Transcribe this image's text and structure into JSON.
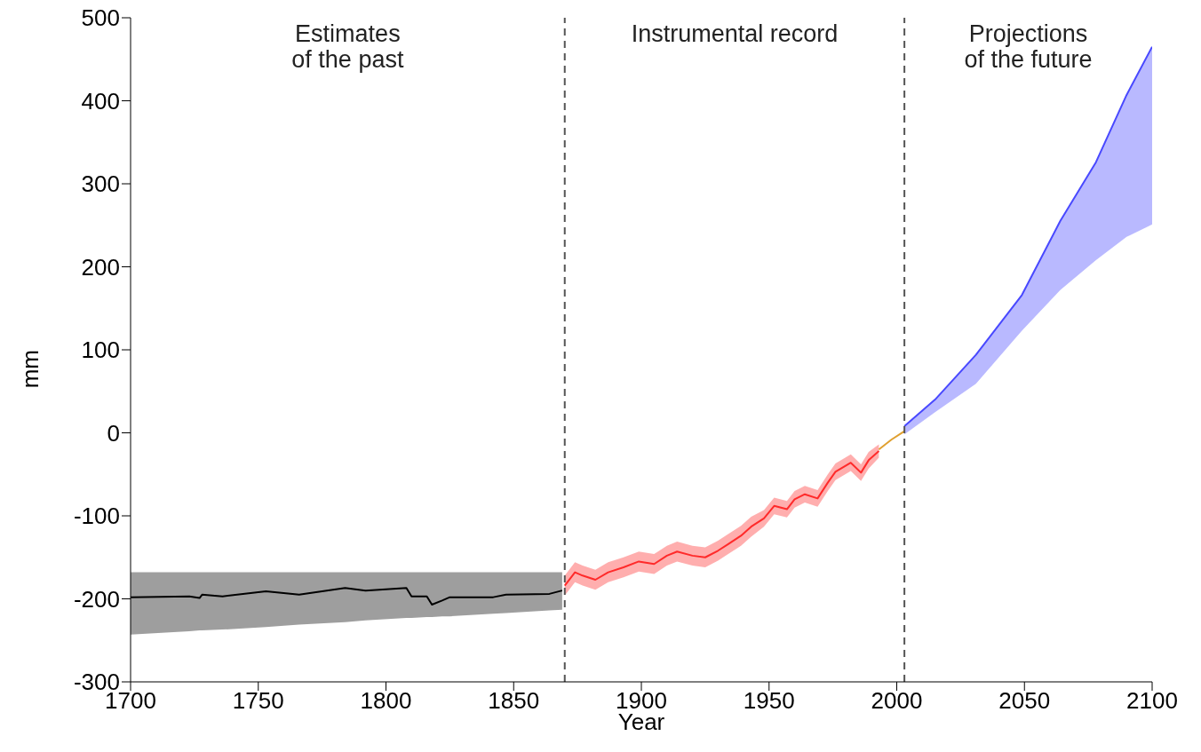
{
  "chart_data": {
    "type": "line",
    "xlabel": "Year",
    "ylabel": "mm",
    "xlim": [
      1700,
      2100
    ],
    "xticks": [
      1700,
      1750,
      1800,
      1850,
      1900,
      1950,
      2000,
      2050,
      2100
    ],
    "ylim": [
      -300,
      500
    ],
    "yticks": [
      -300,
      -200,
      -100,
      0,
      100,
      200,
      300,
      400,
      500
    ],
    "grid": false,
    "legend": false,
    "annotations": [
      "Estimates\nof the past",
      "Instrumental record",
      "Projections\nof the future"
    ],
    "ref_lines": [
      {
        "axis": "x",
        "value": 1870,
        "color": "#555555",
        "line_style": "dashed"
      },
      {
        "axis": "x",
        "value": 2003,
        "color": "#555555",
        "line_style": "dashed"
      }
    ],
    "series": [
      {
        "color": "#000000",
        "x": [
          1700,
          1723,
          1727,
          1728,
          1736,
          1753,
          1766,
          1784,
          1792,
          1808,
          1810,
          1816,
          1818,
          1822,
          1825,
          1842,
          1847,
          1864,
          1869
        ],
        "values": [
          -198,
          -197,
          -199,
          -195,
          -197,
          -191,
          -195,
          -187,
          -190,
          -187,
          -197,
          -197,
          -207,
          -202,
          -198,
          -198,
          -195,
          -194,
          -190
        ],
        "lower": [
          -243,
          -239,
          -238,
          -238,
          -237,
          -234,
          -231,
          -228,
          -226,
          -223,
          -223,
          -222,
          -222,
          -221,
          -221,
          -218,
          -217,
          -214,
          -213
        ],
        "upper": [
          -168,
          -168,
          -168,
          -168,
          -168,
          -168,
          -168,
          -168,
          -168,
          -168,
          -168,
          -168,
          -168,
          -168,
          -168,
          -168,
          -168,
          -168,
          -168
        ]
      },
      {
        "color": "#ff2a2a",
        "x": [
          1870,
          1874,
          1877,
          1882,
          1887,
          1893,
          1899,
          1905,
          1910,
          1914,
          1920,
          1925,
          1930,
          1934,
          1939,
          1943,
          1948,
          1952,
          1957,
          1960,
          1964,
          1969,
          1973,
          1976,
          1982,
          1986,
          1989,
          1993
        ],
        "values": [
          -184,
          -168,
          -172,
          -177,
          -168,
          -162,
          -155,
          -158,
          -148,
          -143,
          -148,
          -150,
          -142,
          -134,
          -124,
          -113,
          -103,
          -88,
          -92,
          -80,
          -74,
          -79,
          -60,
          -47,
          -36,
          -48,
          -33,
          -22
        ],
        "lower": [
          -196,
          -180,
          -184,
          -189,
          -180,
          -174,
          -167,
          -170,
          -160,
          -155,
          -160,
          -162,
          -154,
          -146,
          -136,
          -125,
          -113,
          -98,
          -102,
          -90,
          -84,
          -89,
          -70,
          -57,
          -46,
          -58,
          -43,
          -30
        ],
        "upper": [
          -172,
          -156,
          -160,
          -165,
          -156,
          -150,
          -143,
          -146,
          -136,
          -131,
          -136,
          -138,
          -130,
          -122,
          -112,
          -101,
          -93,
          -78,
          -82,
          -70,
          -64,
          -69,
          -50,
          -37,
          -26,
          -38,
          -23,
          -14
        ]
      },
      {
        "color": "#e0a030",
        "x": [
          1993,
          1998,
          2003
        ],
        "values": [
          -20,
          -8,
          2
        ]
      },
      {
        "color": "#4848ff",
        "x": [
          2003,
          2015,
          2031,
          2049,
          2064,
          2078,
          2090,
          2100
        ],
        "values": [
          8,
          40,
          94,
          166,
          255,
          326,
          407,
          465
        ],
        "lower": [
          -2,
          25,
          59,
          123,
          172,
          208,
          236,
          251
        ],
        "upper": [
          8,
          40,
          94,
          166,
          255,
          326,
          407,
          465
        ]
      }
    ]
  }
}
